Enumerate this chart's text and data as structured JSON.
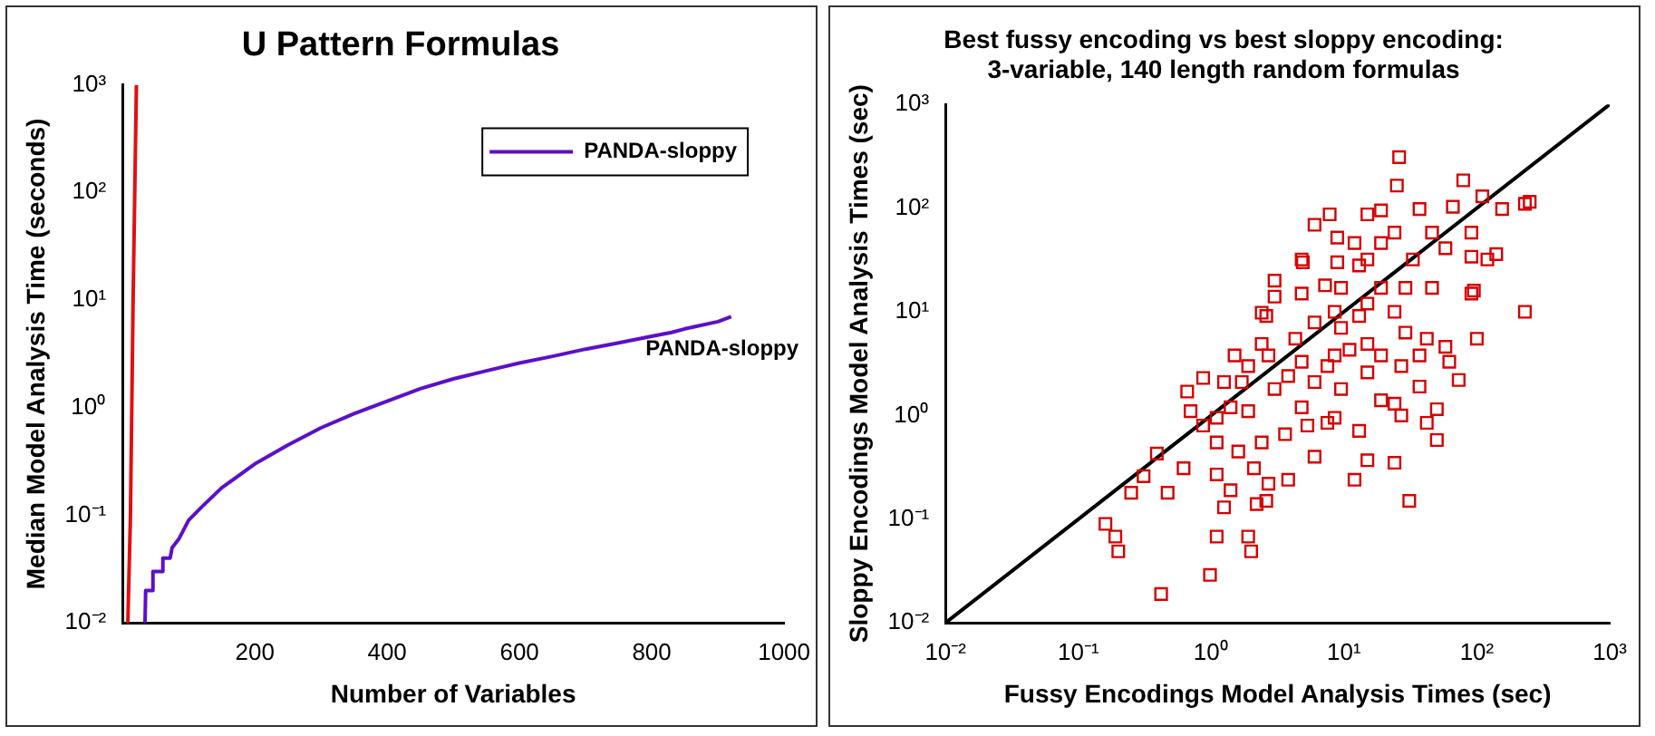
{
  "chart_data": [
    {
      "type": "line",
      "title": "U Pattern Formulas",
      "xlabel": "Number of Variables",
      "ylabel": "Median Model Analysis Time (seconds)",
      "log": "y",
      "grid": false,
      "legend": "top right",
      "marker": "none",
      "line_style": "solid",
      "xlim": [
        0,
        1000
      ],
      "xticks": [
        200,
        400,
        600,
        800,
        1000
      ],
      "ylim": [
        0.01,
        1000
      ],
      "yticks": [
        {
          "value": 0.01,
          "label": "10⁻²"
        },
        {
          "value": 0.1,
          "label": "10⁻¹"
        },
        {
          "value": 1,
          "label": "10⁰"
        },
        {
          "value": 10,
          "label": "10¹"
        },
        {
          "value": 100,
          "label": "10²"
        },
        {
          "value": 1000,
          "label": "10³"
        }
      ],
      "series": [
        {
          "name": "PANDA-sloppy",
          "color": "#5b10c8",
          "x": [
            34,
            35,
            45,
            46,
            60,
            61,
            72,
            75,
            85,
            100,
            120,
            150,
            200,
            250,
            300,
            350,
            400,
            450,
            500,
            550,
            600,
            650,
            700,
            750,
            800,
            830,
            850,
            900,
            920
          ],
          "values": [
            0.01,
            0.02,
            0.02,
            0.03,
            0.03,
            0.04,
            0.04,
            0.05,
            0.06,
            0.09,
            0.12,
            0.18,
            0.3,
            0.45,
            0.65,
            0.88,
            1.15,
            1.5,
            1.85,
            2.2,
            2.6,
            3.0,
            3.5,
            4.0,
            4.6,
            5.0,
            5.4,
            6.3,
            7.0
          ]
        },
        {
          "color": "#e01010",
          "x": [
            8,
            12,
            16,
            21
          ],
          "values": [
            0.01,
            0.1,
            10,
            1000
          ]
        }
      ],
      "annotations": [
        "PANDA-sloppy"
      ]
    },
    {
      "type": "scatter",
      "title": "Best fussy encoding vs best sloppy encoding:\n3-variable, 140 length random formulas",
      "xlabel": "Fussy Encodings Model Analysis Times (sec)",
      "ylabel": "Sloppy Encodings Model Analysis Times (sec)",
      "log": "xy",
      "grid": false,
      "xlim": [
        0.01,
        1000
      ],
      "ylim": [
        0.01,
        1000
      ],
      "xticks": [
        {
          "value": 0.01,
          "label": "10⁻²"
        },
        {
          "value": 0.1,
          "label": "10⁻¹"
        },
        {
          "value": 1,
          "label": "10⁰"
        },
        {
          "value": 10,
          "label": "10¹"
        },
        {
          "value": 100,
          "label": "10²"
        },
        {
          "value": 1000,
          "label": "10³"
        }
      ],
      "yticks": [
        {
          "value": 0.01,
          "label": "10⁻²"
        },
        {
          "value": 0.1,
          "label": "10⁻¹"
        },
        {
          "value": 1,
          "label": "10⁰"
        },
        {
          "value": 10,
          "label": "10¹"
        },
        {
          "value": 100,
          "label": "10²"
        },
        {
          "value": 1000,
          "label": "10³"
        }
      ],
      "series": [
        {
          "color": "#d40000",
          "marker": "square",
          "x": [
            0.16,
            0.19,
            0.2,
            0.42,
            0.98,
            1.1,
            1.9,
            2.0,
            1.25,
            2.2,
            2.6,
            31,
            12,
            24,
            15,
            0.25,
            0.47,
            0.39,
            0.31,
            0.62,
            1.4,
            26,
            25,
            79,
            110,
            155,
            230,
            250,
            7.8,
            6.0,
            8.9,
            15,
            19,
            37,
            66,
            4.9,
            4.8,
            3.0,
            8.9,
            15,
            33,
            58,
            91,
            120,
            140,
            95,
            91,
            230,
            100,
            62,
            73,
            50,
            37,
            50,
            42,
            27,
            24,
            19,
            13,
            8.5,
            5.3,
            3.6,
            2.4,
            1.6,
            1.1,
            0.87,
            0.7,
            0.66,
            0.87,
            1.5,
            1.25,
            1.9,
            2.4,
            2.6,
            2.4,
            3.0,
            4.8,
            7.2,
            9.5,
            13,
            6.0,
            9.5,
            15,
            19,
            24,
            29,
            42,
            15,
            8.5,
            4.8,
            3.8,
            6.0,
            3.0,
            1.9,
            4.8,
            9.5,
            15,
            27,
            37,
            58,
            7.5,
            11,
            19,
            4.3,
            2.7,
            1.7,
            1.4,
            1.1,
            1.1,
            2.1,
            3.8,
            2.7,
            6.0,
            7.5,
            13,
            8.5,
            19,
            24,
            12,
            46,
            46,
            91,
            29
          ],
          "values": [
            0.09,
            0.068,
            0.049,
            0.019,
            0.029,
            0.068,
            0.068,
            0.049,
            0.13,
            0.14,
            0.15,
            0.15,
            0.24,
            0.35,
            0.37,
            0.18,
            0.18,
            0.43,
            0.26,
            0.31,
            0.19,
            310,
            165,
            185,
            130,
            98,
            110,
            115,
            87,
            69,
            52,
            87,
            95,
            98,
            103,
            30,
            15,
            14,
            30,
            32,
            32,
            41,
            34,
            32,
            36,
            16,
            15,
            10,
            5.5,
            3.3,
            2.2,
            1.15,
            1.9,
            0.58,
            0.85,
            1.0,
            1.3,
            1.4,
            0.71,
            0.95,
            0.8,
            0.66,
            0.55,
            0.45,
            0.55,
            0.8,
            1.1,
            1.7,
            2.3,
            3.8,
            2.1,
            3.0,
            4.9,
            9.1,
            9.8,
            20,
            32,
            18,
            17,
            28,
            7.9,
            7.0,
            12,
            17,
            10,
            6.3,
            5.5,
            4.9,
            3.8,
            3.3,
            2.4,
            2.1,
            1.8,
            1.1,
            1.2,
            1.8,
            2.6,
            3.0,
            3.8,
            4.6,
            3.0,
            4.3,
            3.8,
            5.5,
            3.8,
            2.1,
            1.2,
            0.95,
            0.27,
            0.31,
            0.24,
            0.22,
            0.4,
            0.85,
            9.1,
            10,
            46,
            58,
            46,
            58,
            17,
            58,
            17
          ]
        },
        {
          "type": "line",
          "marker": "none",
          "color": "#000000",
          "x": [
            0.01,
            1000
          ],
          "values": [
            0.01,
            1000
          ]
        }
      ]
    }
  ]
}
